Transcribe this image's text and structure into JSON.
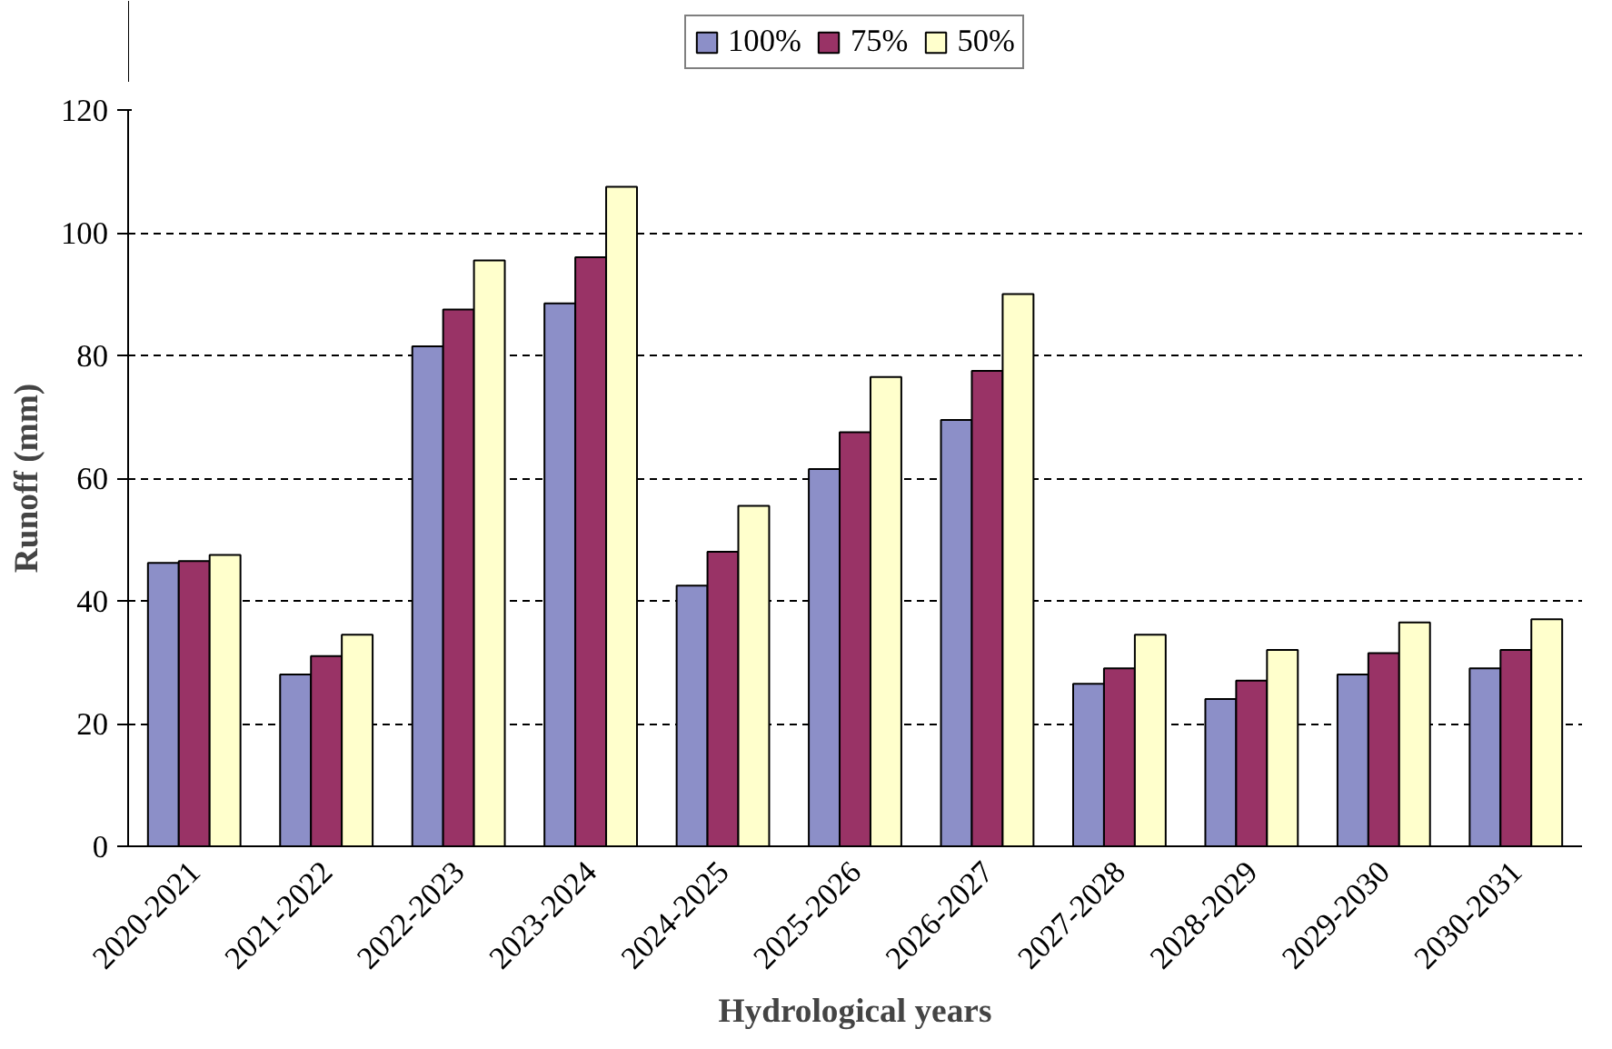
{
  "chart_data": {
    "type": "bar",
    "xlabel": "Hydrological years",
    "ylabel": "Runoff (mm)",
    "categories": [
      "2020-2021",
      "2021-2022",
      "2022-2023",
      "2023-2024",
      "2024-2025",
      "2025-2026",
      "2026-2027",
      "2027-2028",
      "2028-2029",
      "2029-2030",
      "2030-2031"
    ],
    "series": [
      {
        "name": "100%",
        "color": "#8c8fc8",
        "values": [
          46.2,
          28,
          81.5,
          88.5,
          42.5,
          61.5,
          69.5,
          26.5,
          24,
          28,
          29
        ]
      },
      {
        "name": "75%",
        "color": "#993366",
        "values": [
          46.5,
          31,
          87.5,
          96,
          48,
          67.5,
          77.5,
          29,
          27,
          31.5,
          32
        ]
      },
      {
        "name": "50%",
        "color": "#ffffcc",
        "values": [
          47.5,
          34.5,
          95.5,
          107.5,
          55.5,
          76.5,
          90,
          34.5,
          32,
          36.5,
          37
        ]
      }
    ],
    "ylim": [
      0,
      120
    ],
    "yticks": [
      0,
      20,
      40,
      60,
      80,
      100,
      120
    ],
    "grid": "y",
    "legend": "top"
  }
}
